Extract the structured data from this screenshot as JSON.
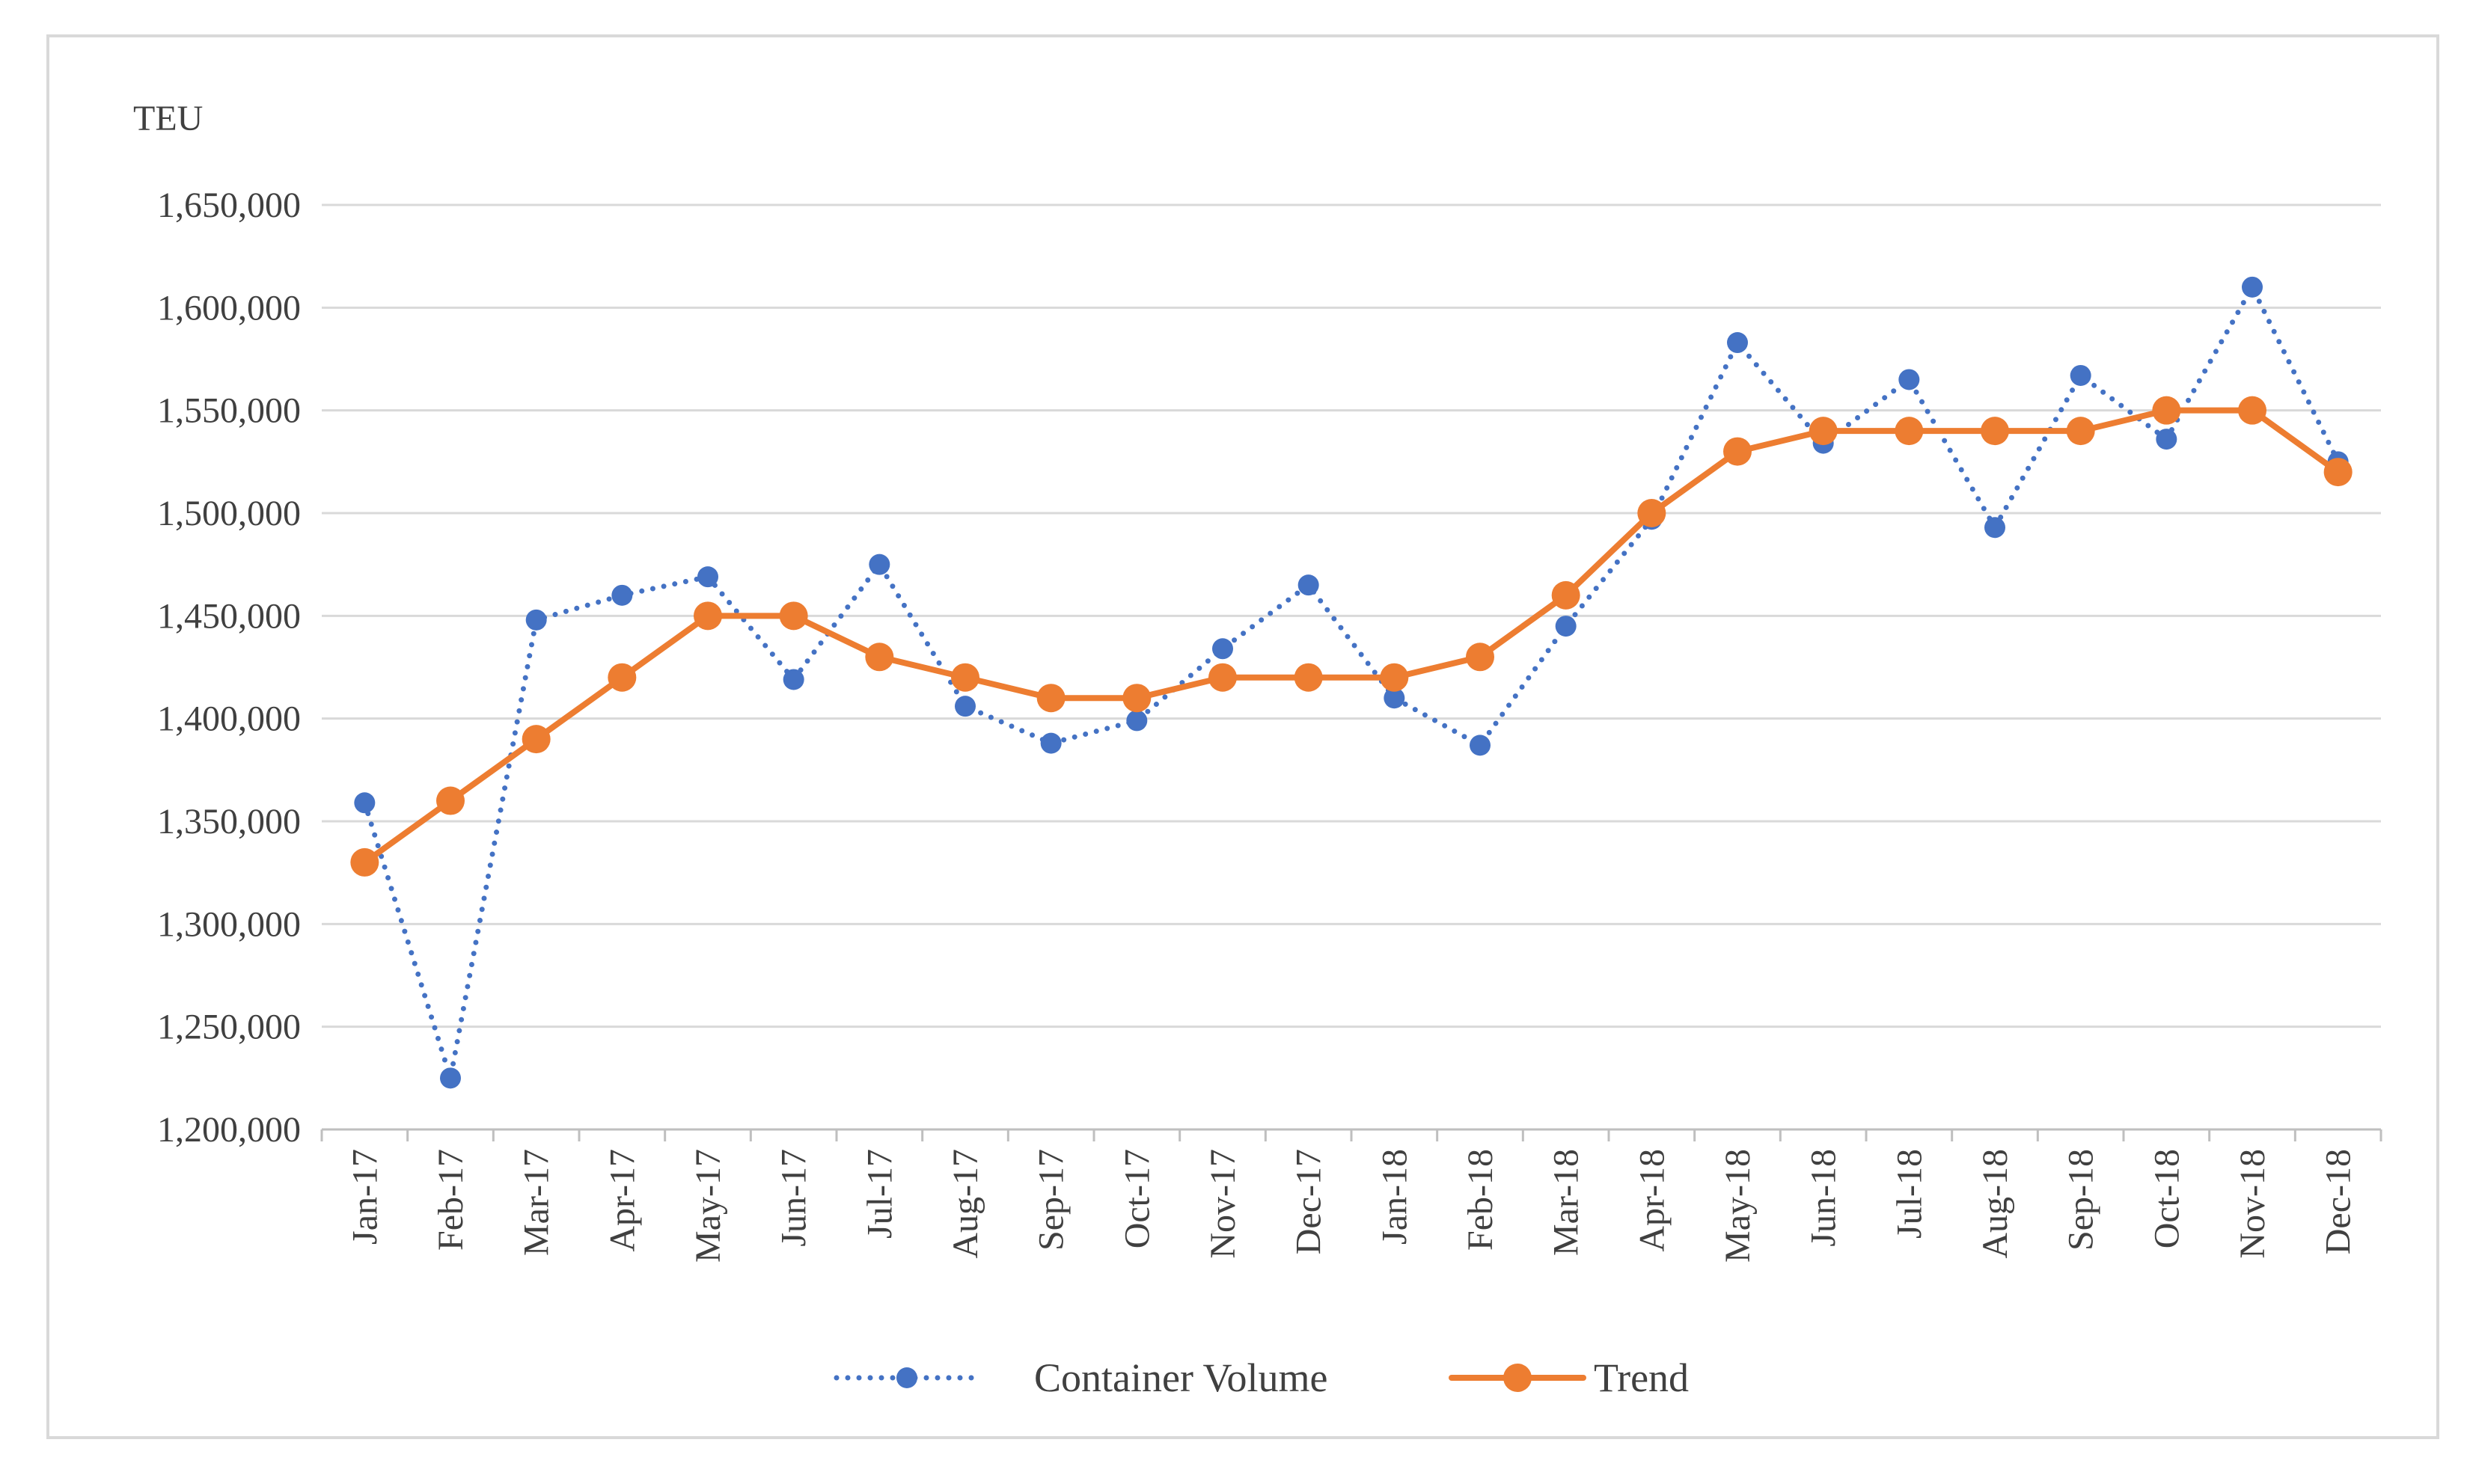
{
  "chart_data": {
    "type": "line",
    "title": "",
    "ylabel": "TEU",
    "xlabel": "",
    "ylim": [
      1200000,
      1650000
    ],
    "yticks": [
      1200000,
      1250000,
      1300000,
      1350000,
      1400000,
      1450000,
      1500000,
      1550000,
      1600000,
      1650000
    ],
    "ytick_labels": [
      "1,200,000",
      "1,250,000",
      "1,300,000",
      "1,350,000",
      "1,400,000",
      "1,450,000",
      "1,500,000",
      "1,550,000",
      "1,600,000",
      "1,650,000"
    ],
    "grid": true,
    "legend": "bottom-center",
    "categories": [
      "Jan-17",
      "Feb-17",
      "Mar-17",
      "Apr-17",
      "May-17",
      "Jun-17",
      "Jul-17",
      "Aug-17",
      "Sep-17",
      "Oct-17",
      "Nov-17",
      "Dec-17",
      "Jan-18",
      "Feb-18",
      "Mar-18",
      "Apr-18",
      "May-18",
      "Jun-18",
      "Jul-18",
      "Aug-18",
      "Sep-18",
      "Oct-18",
      "Nov-18",
      "Dec-18"
    ],
    "series": [
      {
        "name": "Container Volume",
        "color": "#4472c4",
        "style": "dotted",
        "values": [
          1359000,
          1225000,
          1448000,
          1460000,
          1469000,
          1419000,
          1475000,
          1406000,
          1388000,
          1399000,
          1434000,
          1465000,
          1410000,
          1387000,
          1445000,
          1497000,
          1583000,
          1534000,
          1565000,
          1493000,
          1567000,
          1536000,
          1610000,
          1525000
        ]
      },
      {
        "name": "Trend",
        "color": "#ed7d31",
        "style": "solid",
        "values": [
          1330000,
          1360000,
          1390000,
          1420000,
          1450000,
          1450000,
          1430000,
          1420000,
          1410000,
          1410000,
          1420000,
          1420000,
          1420000,
          1430000,
          1460000,
          1500000,
          1530000,
          1540000,
          1540000,
          1540000,
          1540000,
          1550000,
          1550000,
          1520000
        ]
      }
    ]
  }
}
